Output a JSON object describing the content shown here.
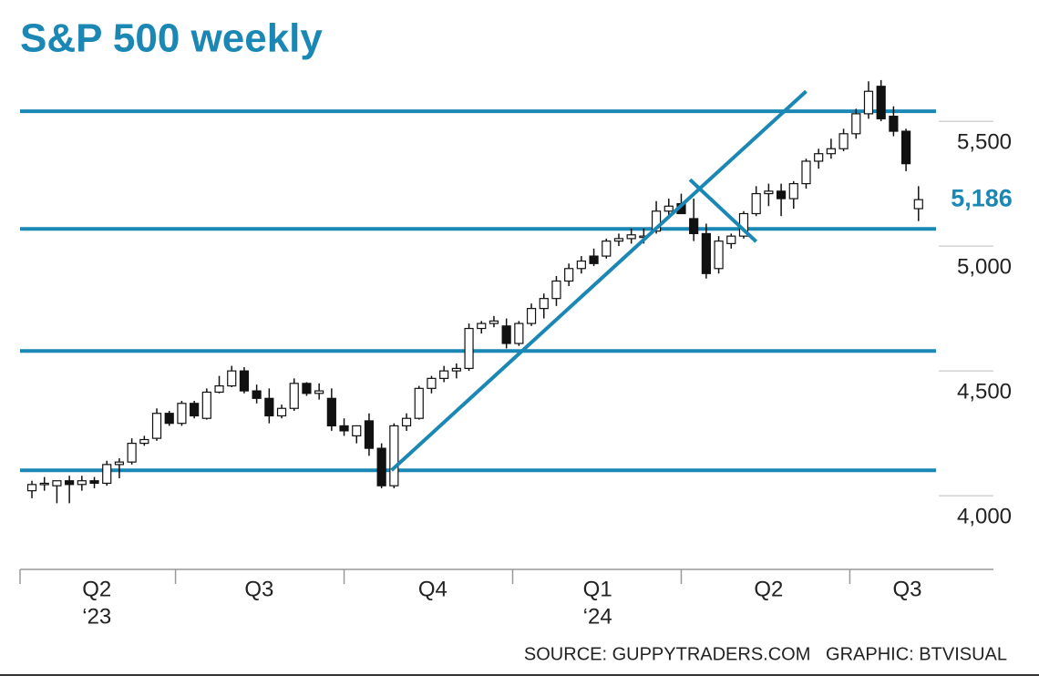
{
  "chart_data": {
    "type": "candlestick",
    "title": "S&P 500 weekly",
    "categories": [
      null,
      null,
      null,
      null,
      null,
      null,
      null,
      null,
      null,
      null,
      null,
      null,
      null,
      null,
      null,
      null,
      null,
      null,
      null,
      null,
      null,
      null,
      null,
      null,
      null,
      null,
      null,
      null,
      null,
      null,
      null,
      null,
      null,
      null,
      null,
      null,
      null,
      null,
      null,
      null,
      null,
      null,
      null,
      null,
      null,
      null,
      null,
      null,
      null,
      null,
      null,
      null,
      null,
      null,
      null,
      null,
      null,
      null,
      null,
      null,
      null,
      null,
      null,
      null,
      null,
      null,
      null,
      null,
      null,
      null,
      null,
      null
    ],
    "open": [
      4020,
      4045,
      4040,
      4060,
      4045,
      4060,
      4050,
      4125,
      4135,
      4210,
      4230,
      4330,
      4290,
      4370,
      4310,
      4415,
      4440,
      4500,
      4420,
      4390,
      4320,
      4350,
      4450,
      4410,
      4390,
      4280,
      4240,
      4300,
      4190,
      4040,
      4280,
      4310,
      4430,
      4470,
      4500,
      4510,
      4670,
      4690,
      4680,
      4610,
      4690,
      4750,
      4790,
      4860,
      4910,
      4960,
      4960,
      5020,
      5030,
      5040,
      5060,
      5140,
      5170,
      5110,
      5050,
      4910,
      5010,
      5040,
      5130,
      5210,
      5220,
      5190,
      5250,
      5340,
      5370,
      5390,
      5450,
      5530,
      5640,
      5520,
      5460,
      5150
    ],
    "high": [
      4060,
      4075,
      4060,
      4080,
      4080,
      4075,
      4140,
      4150,
      4230,
      4240,
      4350,
      4340,
      4380,
      4380,
      4430,
      4480,
      4520,
      4515,
      4445,
      4430,
      4365,
      4470,
      4455,
      4450,
      4430,
      4310,
      4280,
      4330,
      4210,
      4290,
      4330,
      4440,
      4480,
      4520,
      4530,
      4690,
      4700,
      4720,
      4710,
      4700,
      4770,
      4810,
      4880,
      4930,
      4960,
      4990,
      5030,
      5050,
      5070,
      5070,
      5180,
      5190,
      5210,
      5190,
      5090,
      5040,
      5050,
      5140,
      5240,
      5250,
      5250,
      5260,
      5350,
      5390,
      5430,
      5470,
      5550,
      5660,
      5665,
      5560,
      5470,
      5240
    ],
    "low": [
      3990,
      4020,
      3970,
      3970,
      4020,
      4030,
      4040,
      4070,
      4125,
      4200,
      4220,
      4280,
      4280,
      4310,
      4305,
      4410,
      4435,
      4410,
      4370,
      4290,
      4310,
      4340,
      4400,
      4385,
      4260,
      4240,
      4210,
      4160,
      4030,
      4030,
      4260,
      4305,
      4410,
      4455,
      4470,
      4500,
      4650,
      4675,
      4590,
      4600,
      4680,
      4710,
      4760,
      4840,
      4890,
      4920,
      4950,
      5000,
      5010,
      5010,
      5050,
      5120,
      5140,
      5020,
      4870,
      4890,
      4990,
      5030,
      5120,
      5160,
      5120,
      5150,
      5230,
      5310,
      5350,
      5380,
      5430,
      5510,
      5500,
      5440,
      5300,
      5100
    ],
    "close": [
      4045,
      4050,
      4060,
      4045,
      4060,
      4050,
      4125,
      4135,
      4210,
      4225,
      4330,
      4290,
      4370,
      4320,
      4415,
      4440,
      4500,
      4420,
      4390,
      4320,
      4350,
      4450,
      4410,
      4420,
      4280,
      4260,
      4280,
      4190,
      4040,
      4280,
      4310,
      4430,
      4470,
      4500,
      4510,
      4670,
      4690,
      4700,
      4610,
      4690,
      4750,
      4790,
      4860,
      4910,
      4940,
      4930,
      5020,
      5030,
      5045,
      5040,
      5140,
      5160,
      5130,
      5050,
      4890,
      5020,
      5040,
      5130,
      5210,
      5220,
      5190,
      5250,
      5340,
      5370,
      5390,
      5450,
      5530,
      5620,
      5510,
      5460,
      5330,
      5186
    ],
    "up_color": "#ffffff",
    "down_color": "#111111",
    "line_color": "#1a87b5",
    "xlim": [
      -0.95,
      77
    ],
    "quarter_bounds": [
      -0.95,
      11.5,
      25.0,
      38.5,
      52.0,
      65.5
    ],
    "xticks": [
      {
        "value": 5.2,
        "label": "Q2"
      },
      {
        "value": 18.2,
        "label": "Q3"
      },
      {
        "value": 32.1,
        "label": "Q4"
      },
      {
        "value": 45.3,
        "label": "Q1"
      },
      {
        "value": 59.0,
        "label": "Q2"
      },
      {
        "value": 70.1,
        "label": "Q3"
      }
    ],
    "year_labels": [
      {
        "value": 5.2,
        "label": "‘23"
      },
      {
        "value": 45.3,
        "label": "‘24"
      }
    ],
    "ylim": [
      3705,
      5712
    ],
    "yticks": [
      {
        "value": 4000,
        "label": "4,000"
      },
      {
        "value": 4500,
        "label": "4,500"
      },
      {
        "value": 5000,
        "label": "5,000"
      },
      {
        "value": 5500,
        "label": "5,500"
      }
    ],
    "hlines": [
      5540,
      5069,
      4580,
      4102
    ],
    "trendlines": [
      {
        "x": [
          28.8,
          62.0
        ],
        "y": [
          4102,
          5620
        ]
      },
      {
        "x": [
          52.7,
          58.0
        ],
        "y": [
          5266,
          5018
        ]
      }
    ],
    "last_label": {
      "value": 5186,
      "label": "5,186"
    },
    "source": "SOURCE: GUPPYTRADERS.COM   GRAPHIC: BTVISUAL"
  }
}
